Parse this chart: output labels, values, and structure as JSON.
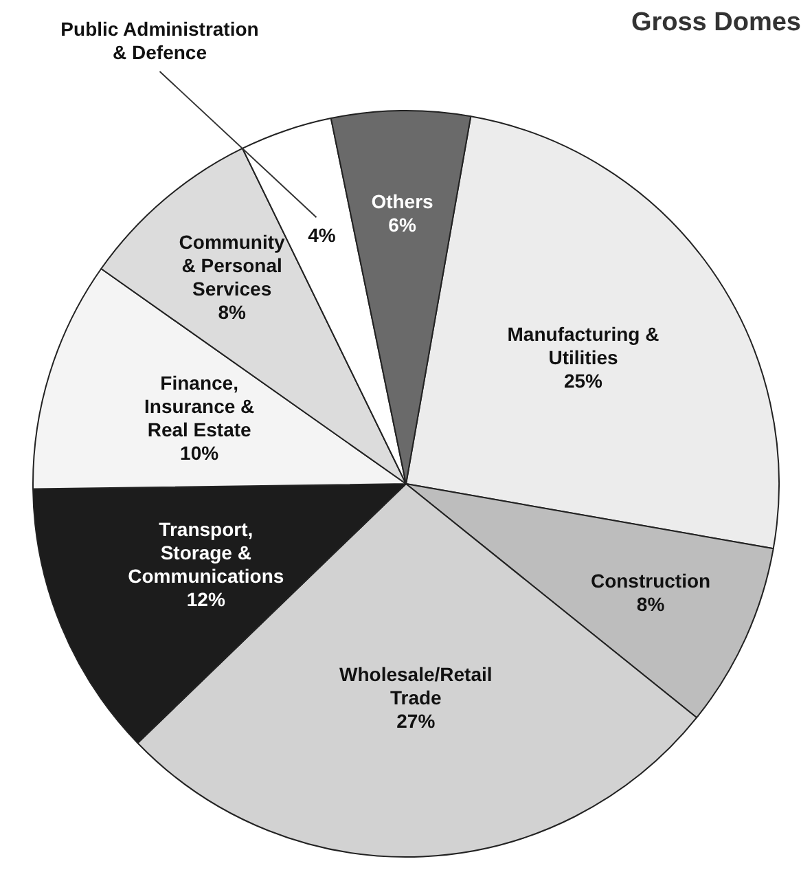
{
  "chart_data": {
    "type": "pie",
    "title": "Gross Domes",
    "categories": [
      "Manufacturing & Utilities",
      "Construction",
      "Wholesale/Retail Trade",
      "Transport, Storage & Communications",
      "Finance, Insurance & Real Estate",
      "Community & Personal Services",
      "Public Administration & Defence",
      "Others"
    ],
    "values": [
      25,
      8,
      27,
      12,
      10,
      8,
      4,
      6
    ],
    "value_labels": [
      "25%",
      "8%",
      "27%",
      "12%",
      "10%",
      "8%",
      "4%",
      "6%"
    ],
    "colors": [
      "#ececec",
      "#bdbdbd",
      "#d2d2d2",
      "#1c1c1c",
      "#f4f4f4",
      "#dcdcdc",
      "#ffffff",
      "#6a6a6a"
    ],
    "legend": false
  }
}
